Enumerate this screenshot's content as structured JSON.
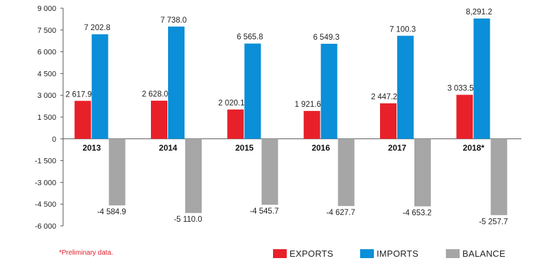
{
  "chart_data": {
    "type": "bar",
    "categories": [
      "2013",
      "2014",
      "2015",
      "2016",
      "2017",
      "2018*"
    ],
    "series": [
      {
        "name": "EXPORTS",
        "color": "#e8202a",
        "values": [
          2617.9,
          2628.0,
          2020.1,
          1921.6,
          2447.2,
          3033.5
        ],
        "labels": [
          "2 617.9",
          "2 628.0",
          "2 020.1",
          "1 921.6",
          "2 447.2",
          "3 033.5"
        ]
      },
      {
        "name": "IMPORTS",
        "color": "#0a8fd8",
        "values": [
          7202.8,
          7738.0,
          6565.8,
          6549.3,
          7100.3,
          8291.2
        ],
        "labels": [
          "7 202.8",
          "7 738.0",
          "6 565.8",
          "6 549.3",
          "7 100.3",
          "8,291.2"
        ]
      },
      {
        "name": "BALANCE",
        "color": "#a6a6a6",
        "values": [
          -4584.9,
          -5110.0,
          -4545.7,
          -4627.7,
          -4653.2,
          -5257.7
        ],
        "labels": [
          "-4 584.9",
          "-5 110.0",
          "-4 545.7",
          "-4 627.7",
          "-4 653.2",
          "-5 257.7"
        ]
      }
    ],
    "y_ticks": [
      9000,
      7500,
      6000,
      4500,
      3000,
      1500,
      0,
      -1500,
      -3000,
      -4500,
      -6000
    ],
    "y_tick_labels": [
      "9 000",
      "7 500",
      "6 000",
      "4 500",
      "3 000",
      "1 500",
      "0",
      "-1 500",
      "-3 000",
      "-4 500",
      "-6 000"
    ],
    "ylim": [
      -6000,
      9000
    ],
    "grid": false,
    "legend_position": "bottom-right",
    "title": "",
    "xlabel": "",
    "ylabel": ""
  },
  "footnote": "*Preliminary data."
}
